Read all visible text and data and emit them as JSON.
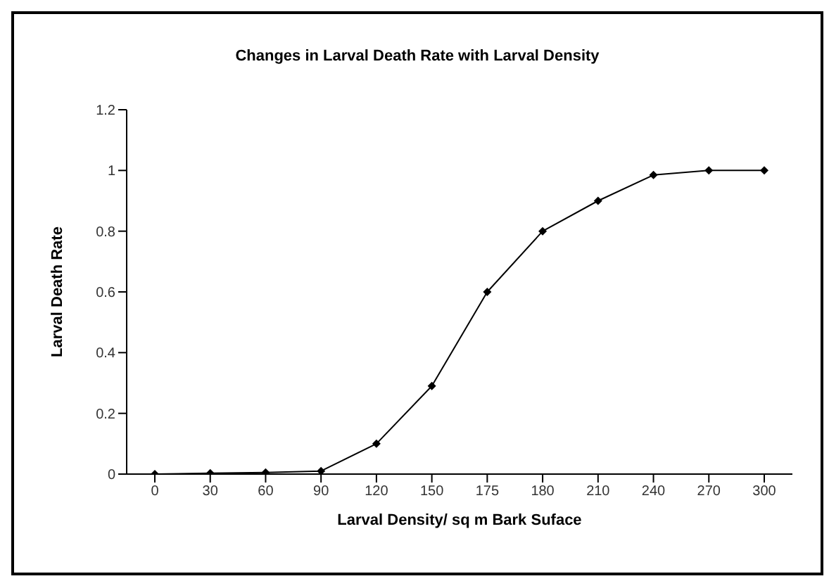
{
  "chart_data": {
    "type": "line",
    "title": "Changes in Larval Death Rate with Larval Density",
    "xlabel": "Larval Density/ sq m Bark Suface",
    "ylabel": "Larval Death Rate",
    "categories": [
      "0",
      "30",
      "60",
      "90",
      "120",
      "150",
      "175",
      "180",
      "210",
      "240",
      "270",
      "300"
    ],
    "series": [
      {
        "color": "#000000",
        "values": [
          0,
          0.003,
          0.005,
          0.01,
          0.1,
          0.29,
          0.6,
          0.8,
          0.9,
          0.985,
          1,
          1
        ]
      }
    ],
    "ylim": [
      0,
      1.2
    ],
    "yticks": [
      0,
      0.2,
      0.4,
      0.6,
      0.8,
      1,
      1.2
    ],
    "grid": false,
    "legend": false,
    "marker": "diamond",
    "line_style": "solid"
  }
}
